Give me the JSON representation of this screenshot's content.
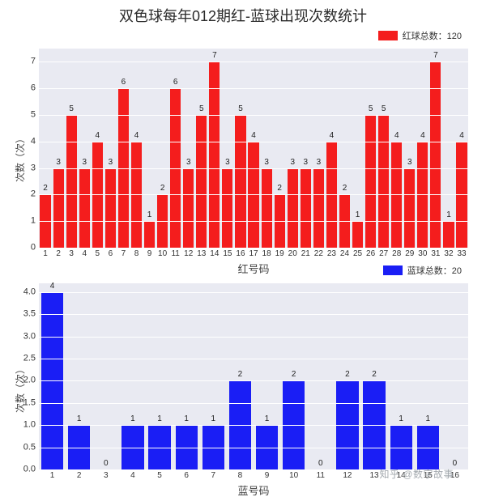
{
  "title": "双色球每年012期红-蓝球出现次数统计",
  "watermark": "知乎 @数字故事",
  "red_chart": {
    "type": "bar",
    "legend": "红球总数：120",
    "legend_color": "#f41d1d",
    "bar_color": "#f41d1d",
    "label_color": "#222222",
    "background_color": "#e9eaf2",
    "grid_color": "#ffffff",
    "ylabel": "次数（次）",
    "xlabel": "红号码",
    "ylim_max": 7.5,
    "yticks": [
      0,
      1,
      2,
      3,
      4,
      5,
      6,
      7
    ],
    "categories": [
      1,
      2,
      3,
      4,
      5,
      6,
      7,
      8,
      9,
      10,
      11,
      12,
      13,
      14,
      15,
      16,
      17,
      18,
      19,
      20,
      21,
      22,
      23,
      24,
      25,
      26,
      27,
      28,
      29,
      30,
      31,
      32,
      33
    ],
    "values": [
      2,
      3,
      5,
      3,
      4,
      3,
      6,
      4,
      1,
      2,
      6,
      3,
      5,
      7,
      3,
      5,
      4,
      3,
      2,
      3,
      3,
      3,
      4,
      2,
      1,
      5,
      5,
      4,
      3,
      4,
      7,
      1,
      4
    ]
  },
  "blue_chart": {
    "type": "bar",
    "legend": "蓝球总数：20",
    "legend_color": "#1a1ef5",
    "bar_color": "#1a1ef5",
    "label_color": "#222222",
    "background_color": "#e9eaf2",
    "grid_color": "#ffffff",
    "ylabel": "次数（次）",
    "xlabel": "蓝号码",
    "ylim_max": 4.2,
    "yticks": [
      0.0,
      0.5,
      1.0,
      1.5,
      2.0,
      2.5,
      3.0,
      3.5,
      4.0
    ],
    "categories": [
      1,
      2,
      3,
      4,
      5,
      6,
      7,
      8,
      9,
      10,
      11,
      12,
      13,
      14,
      15,
      16
    ],
    "values": [
      4,
      1,
      0,
      1,
      1,
      1,
      1,
      2,
      1,
      2,
      0,
      2,
      2,
      1,
      1,
      0
    ]
  }
}
